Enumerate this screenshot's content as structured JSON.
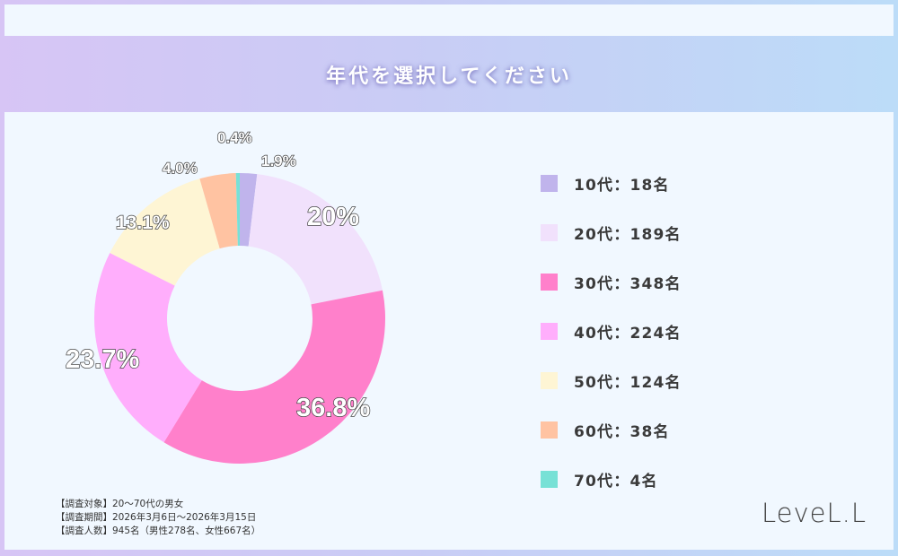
{
  "banner": {
    "title": "年代を選択してください"
  },
  "legend": {
    "items": [
      {
        "label": "10代：18名",
        "color": "#c0b4ec"
      },
      {
        "label": "20代：189名",
        "color": "#f1e1fc"
      },
      {
        "label": "30代：348名",
        "color": "#ff80cb"
      },
      {
        "label": "40代：224名",
        "color": "#ffaefc"
      },
      {
        "label": "50代：124名",
        "color": "#fef5d4"
      },
      {
        "label": "60代：38名",
        "color": "#ffc3a2"
      },
      {
        "label": "70代：4名",
        "color": "#77e1d6"
      }
    ]
  },
  "notes": {
    "target": "【調査対象】20〜70代の男女",
    "period": "【調査期間】2026年3月6日〜2026年3月15日",
    "respondents": "【調査人数】945名（男性278名、女性667名）"
  },
  "logo": {
    "text": "LeveL.L"
  },
  "chart_data": {
    "type": "pie",
    "variant": "donut",
    "title": "年代を選択してください",
    "categories": [
      "10代",
      "20代",
      "30代",
      "40代",
      "50代",
      "60代",
      "70代"
    ],
    "values": [
      18,
      189,
      348,
      224,
      124,
      38,
      4
    ],
    "percent_labels": [
      "1.9%",
      "20%",
      "36.8%",
      "23.7%",
      "13.1%",
      "4.0%",
      "0.4%"
    ],
    "colors": [
      "#c0b4ec",
      "#f1e1fc",
      "#ff80cb",
      "#ffaefc",
      "#fef5d4",
      "#ffc3a2",
      "#77e1d6"
    ],
    "total": 945,
    "start_angle": "12 o'clock",
    "direction": "clockwise",
    "legend_position": "right"
  }
}
